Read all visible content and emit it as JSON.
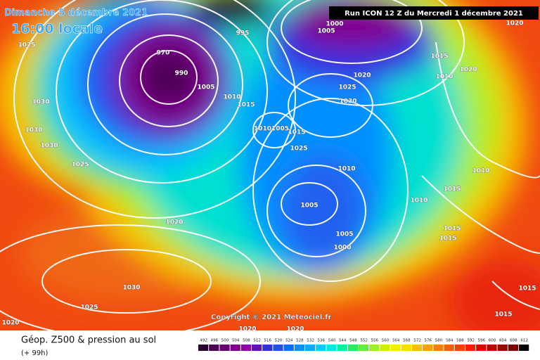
{
  "header": {
    "date": "Dimanche 5 décembre 2021",
    "time": "16:00 locale",
    "run": "Run ICON 12 Z du Mercredi 1 décembre 2021"
  },
  "copyright": "Copyright © 2021 Meteociel.fr",
  "footer": {
    "title": "Géop. Z500 & pression au sol",
    "lead": "(+ 99h)"
  },
  "isobar_labels": [
    "1025",
    "1030",
    "1030",
    "1030",
    "1025",
    "970",
    "990",
    "995",
    "1005",
    "1010",
    "1015",
    "10101005",
    "1015",
    "1025",
    "1010",
    "1005",
    "1005",
    "1000",
    "1020",
    "1030",
    "1025",
    "1020",
    "1020",
    "1020",
    "1005",
    "1000",
    "1020",
    "1025",
    "1030",
    "1015",
    "1010",
    "1020",
    "1020",
    "1010",
    "1015",
    "1010",
    "1015",
    "1015",
    "1015",
    "1015"
  ],
  "colorbar": {
    "ticks": [
      492,
      496,
      500,
      504,
      508,
      512,
      516,
      520,
      524,
      528,
      532,
      536,
      540,
      544,
      548,
      552,
      556,
      560,
      564,
      568,
      572,
      576,
      580,
      584,
      588,
      592,
      596,
      600,
      604,
      608,
      612
    ],
    "colors": [
      "#2a0030",
      "#4a0050",
      "#660070",
      "#800090",
      "#9000b0",
      "#6010c0",
      "#3030e0",
      "#2050f0",
      "#0070ff",
      "#0090ff",
      "#00b0ff",
      "#00d0ff",
      "#00e8e0",
      "#00f0a0",
      "#20f060",
      "#60f030",
      "#a0f020",
      "#d0f000",
      "#f0f000",
      "#f8e000",
      "#f8c000",
      "#f8a000",
      "#f88000",
      "#f86000",
      "#f84000",
      "#f02000",
      "#e00000",
      "#c00000",
      "#a00000",
      "#800000",
      "#000000"
    ]
  }
}
